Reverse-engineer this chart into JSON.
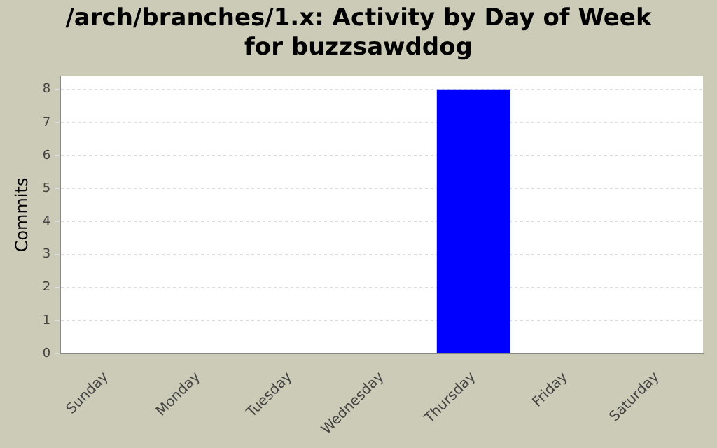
{
  "chart_data": {
    "type": "bar",
    "title": "/arch/branches/1.x: Activity by Day of Week for buzzsawddog",
    "ylabel": "Commits",
    "categories": [
      "Sunday",
      "Monday",
      "Tuesday",
      "Wednesday",
      "Thursday",
      "Friday",
      "Saturday"
    ],
    "values": [
      0,
      0,
      0,
      0,
      8,
      0,
      0
    ],
    "color": "#0000ff",
    "ylim": [
      0,
      8.4
    ],
    "yticks": [
      0,
      1,
      2,
      3,
      4,
      5,
      6,
      7,
      8
    ],
    "grid": "y"
  }
}
